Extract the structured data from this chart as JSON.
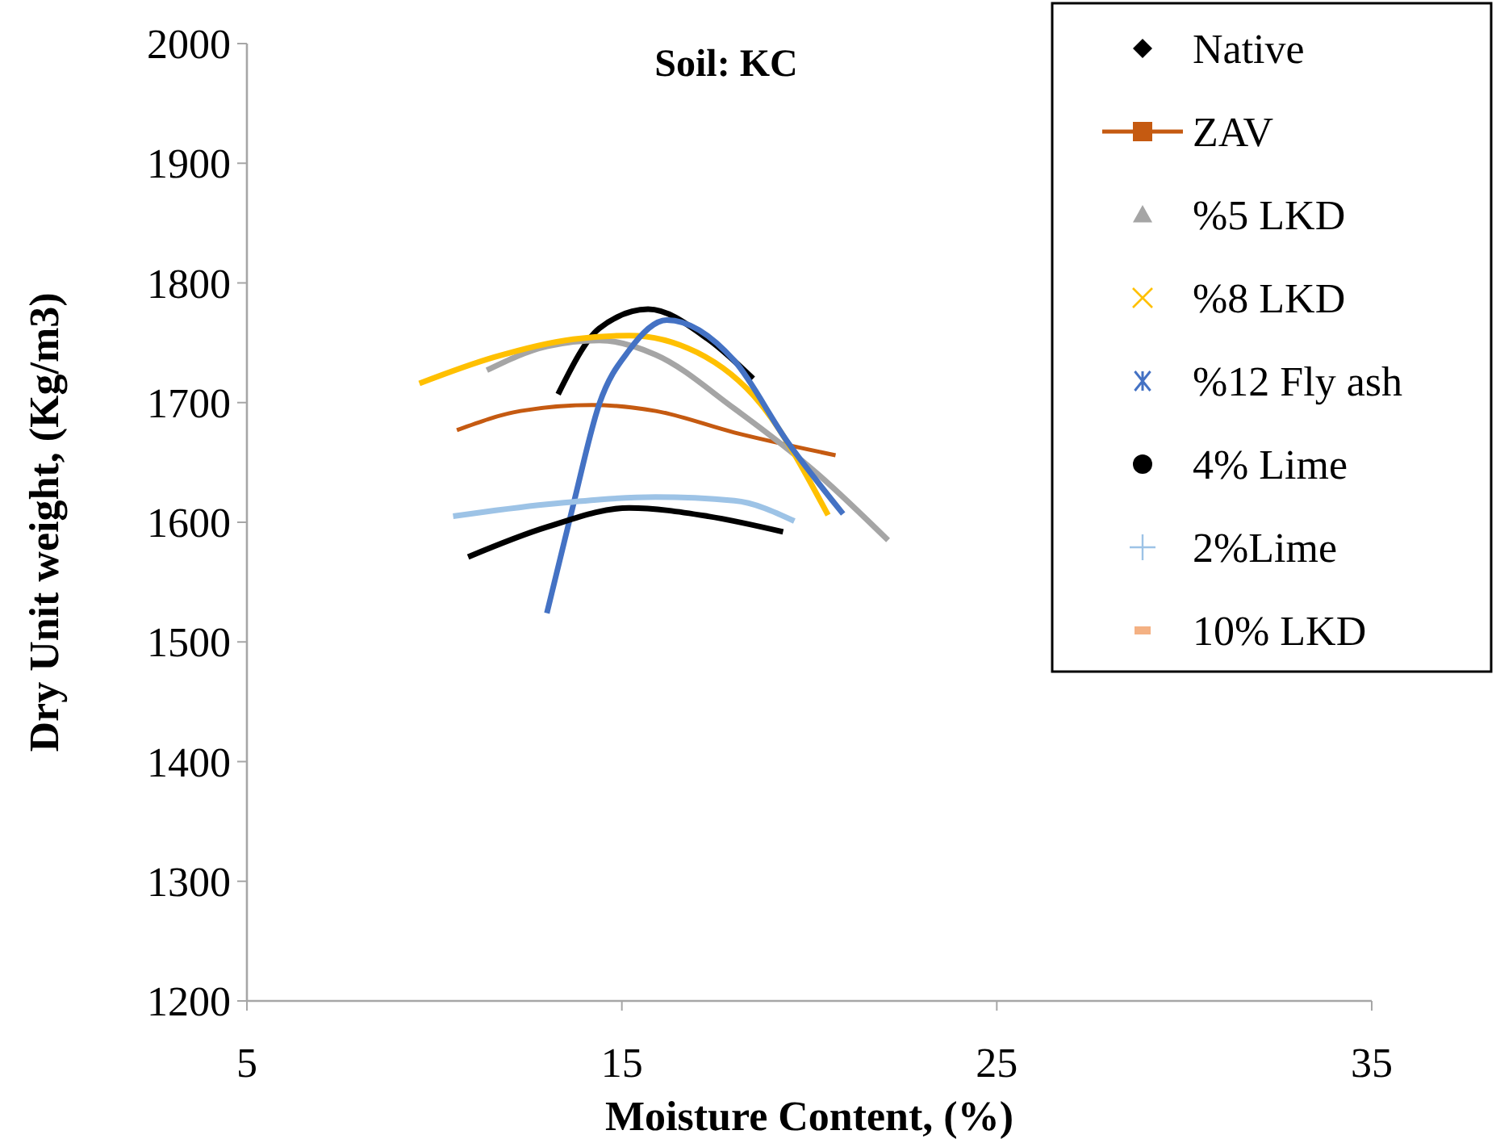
{
  "chart_data": {
    "type": "line",
    "title": "Soil: KC",
    "xlabel": "Moisture Content, (%)",
    "ylabel": "Dry Unit weight, (Kg/m3)",
    "xlim": [
      5,
      35
    ],
    "xticks": [
      5,
      15,
      25,
      35
    ],
    "ylim": [
      1200,
      2000
    ],
    "yticks": [
      1200,
      1300,
      1400,
      1500,
      1600,
      1700,
      1800,
      1900,
      2000
    ],
    "grid": false,
    "legend": "top right",
    "series": [
      {
        "name": "Native",
        "color": "#000000",
        "x": [
          13.3,
          14.4,
          15.7,
          17.3,
          18.5
        ],
        "values": [
          1707,
          1762,
          1778,
          1753,
          1720
        ]
      },
      {
        "name": "ZAV",
        "color": "#c55a11",
        "line_style": "solid",
        "x": [
          10.6,
          12.3,
          14.2,
          15.9,
          18.0,
          20.7
        ],
        "values": [
          1677,
          1693,
          1698,
          1693,
          1675,
          1656
        ]
      },
      {
        "name": "%5 LKD",
        "color": "#a5a5a5",
        "x": [
          11.4,
          13.0,
          14.4,
          15.9,
          18.0,
          20.2,
          22.1
        ],
        "values": [
          1727,
          1747,
          1752,
          1740,
          1695,
          1641,
          1585
        ]
      },
      {
        "name": "%8 LKD",
        "color": "#ffc000",
        "x": [
          9.6,
          11.6,
          13.7,
          15.2,
          17.0,
          18.7,
          20.5
        ],
        "values": [
          1716,
          1738,
          1753,
          1756,
          1742,
          1699,
          1606
        ]
      },
      {
        "name": "%12 Fly ash",
        "color": "#4472c4",
        "x": [
          13.0,
          13.7,
          14.4,
          15.2,
          16.2,
          18.0,
          19.4,
          20.9
        ],
        "values": [
          1524,
          1614,
          1699,
          1744,
          1769,
          1735,
          1668,
          1607
        ]
      },
      {
        "name": "4% Lime",
        "color": "#000000",
        "x": [
          10.9,
          13.0,
          15.2,
          17.3,
          19.3
        ],
        "values": [
          1571,
          1596,
          1612,
          1605,
          1592
        ]
      },
      {
        "name": "2%Lime",
        "color": "#9dc3e6",
        "x": [
          10.5,
          13.0,
          15.9,
          18.0,
          19.6
        ],
        "values": [
          1605,
          1615,
          1621,
          1618,
          1601
        ]
      },
      {
        "name": "10% LKD",
        "color": "#f4b183"
      }
    ]
  }
}
